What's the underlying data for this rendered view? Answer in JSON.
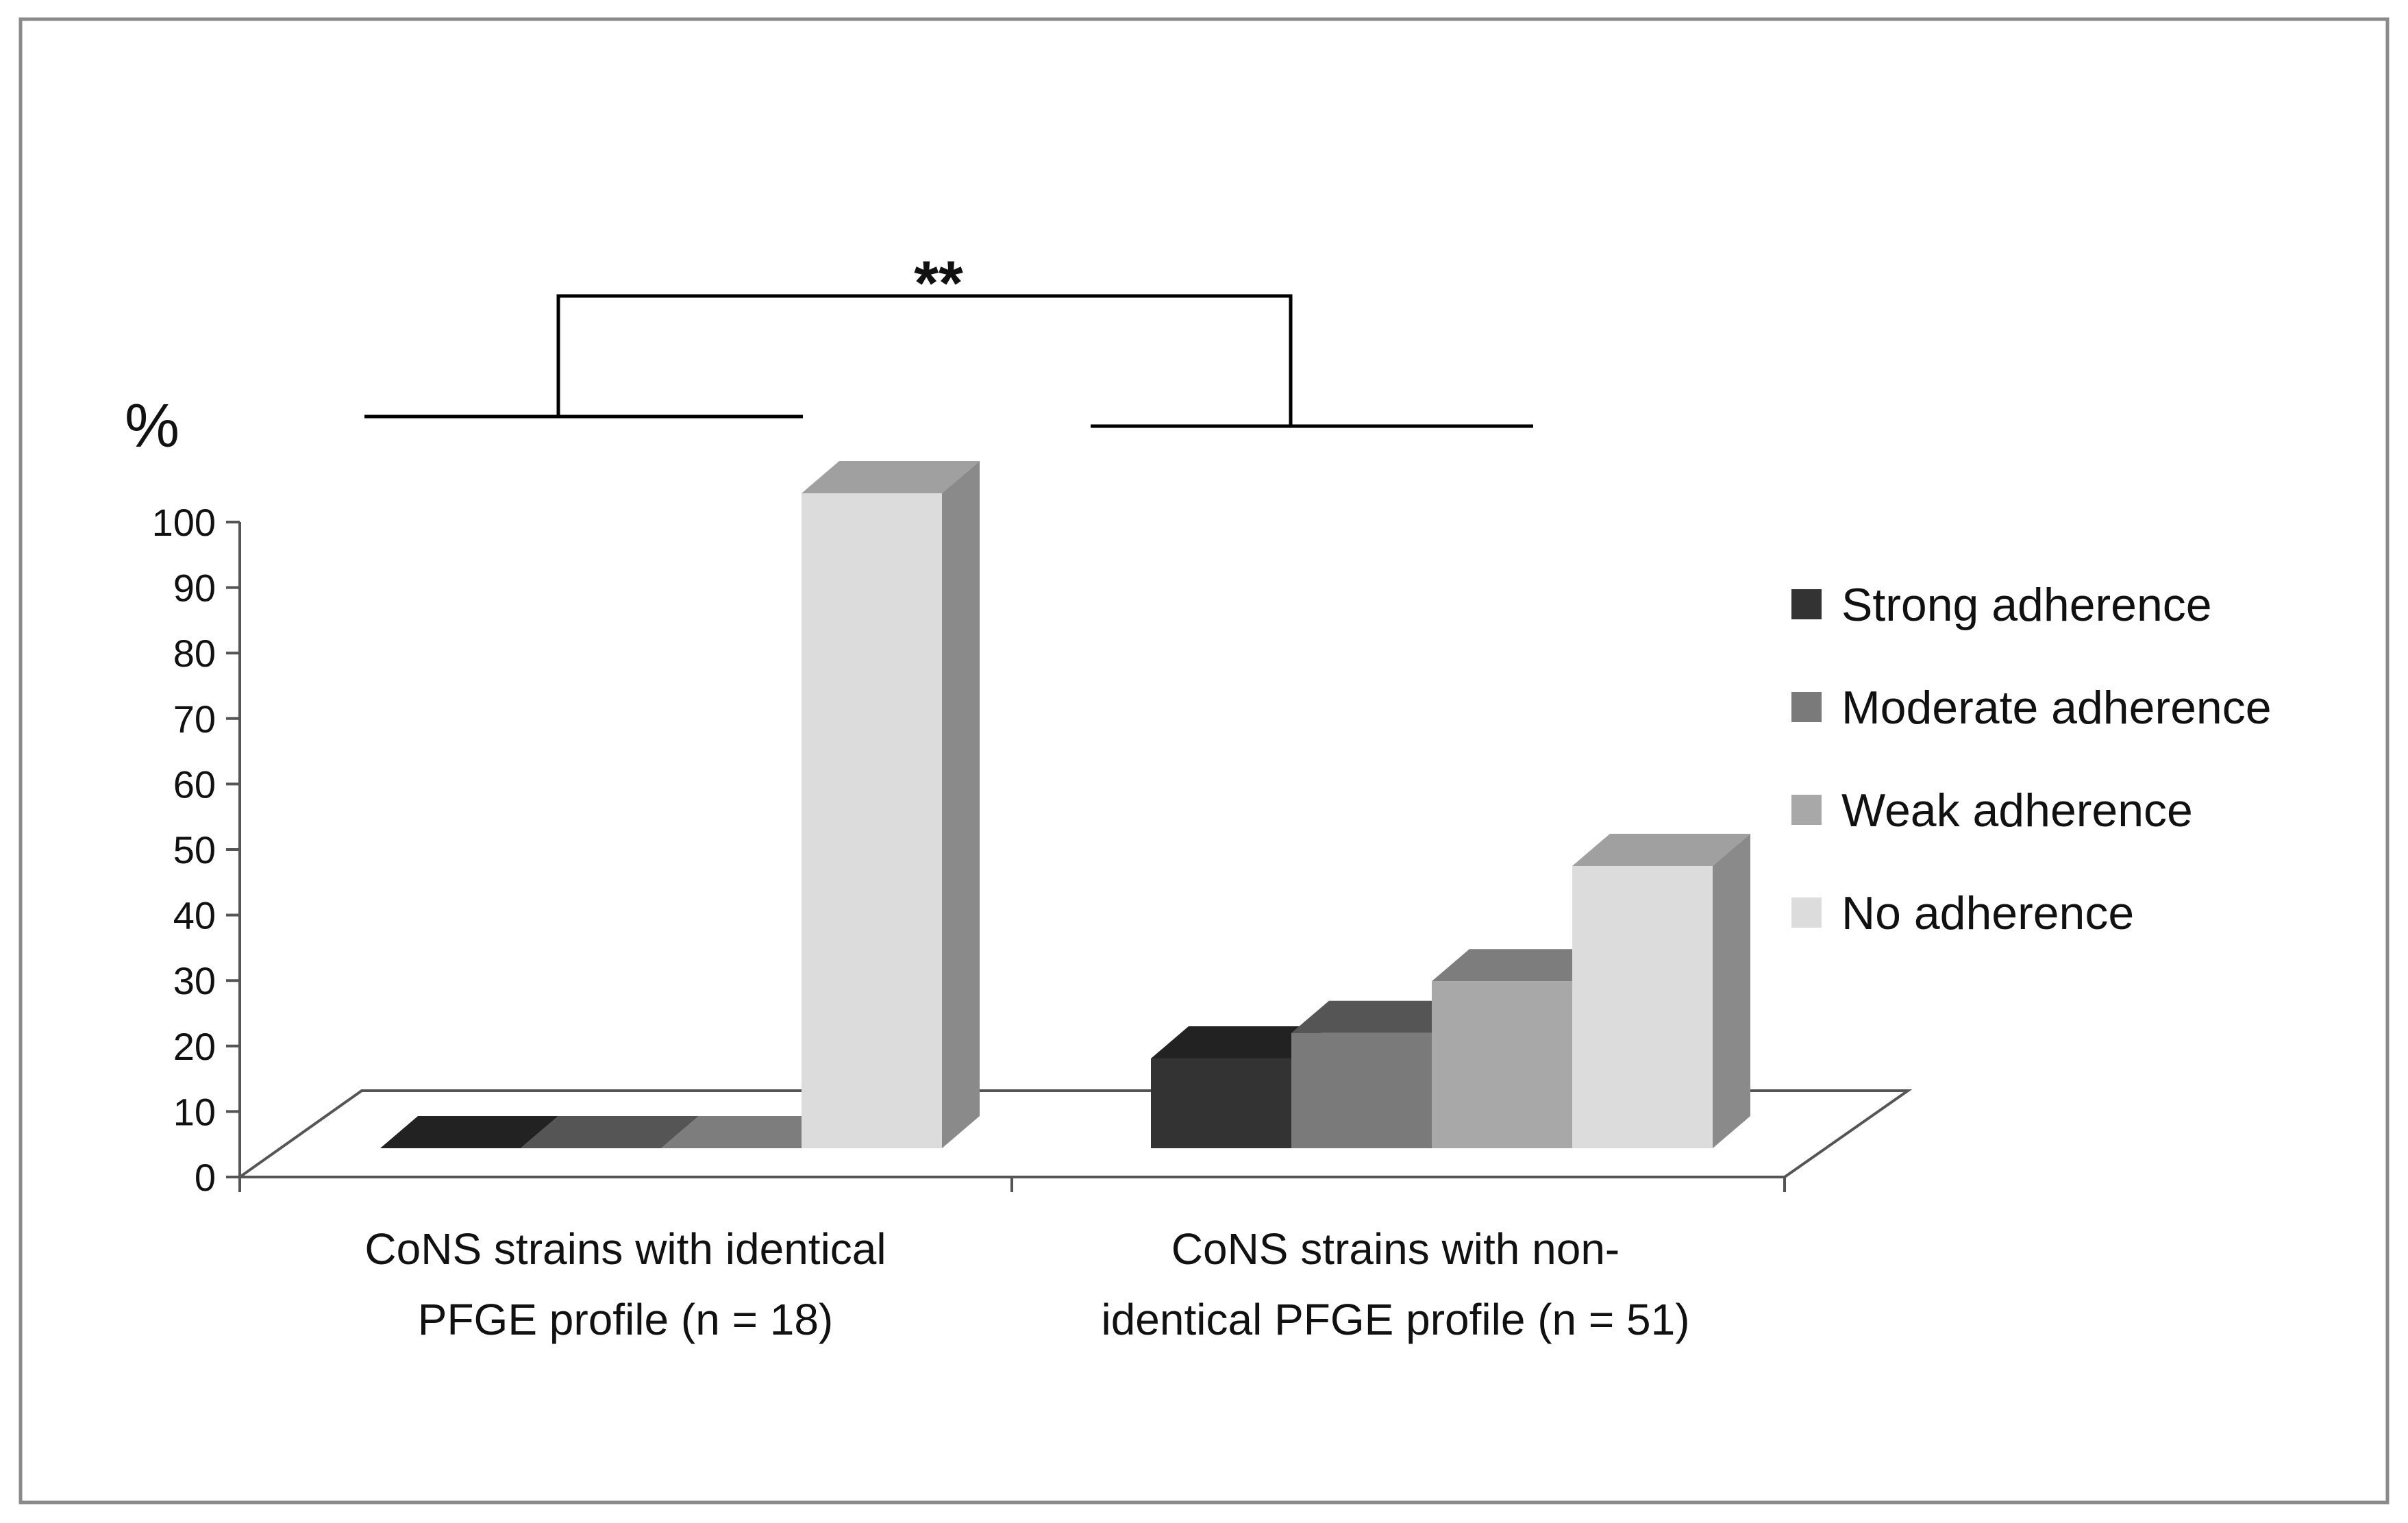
{
  "chart_data": {
    "type": "bar",
    "ylabel": "%",
    "ylim": [
      0,
      100
    ],
    "yticks": [
      0,
      10,
      20,
      30,
      40,
      50,
      60,
      70,
      80,
      90,
      100
    ],
    "categories": [
      {
        "line1": "CoNS strains with identical",
        "line2": "PFGE profile (n = 18)"
      },
      {
        "line1": "CoNS strains with non-",
        "line2": "identical PFGE profile (n = 51)"
      }
    ],
    "series": [
      {
        "name": "Strong adherence",
        "values": [
          0,
          13.7
        ],
        "front": "#333333",
        "top": "#222222",
        "side": "#2a2a2a"
      },
      {
        "name": "Moderate adherence",
        "values": [
          0,
          17.6
        ],
        "front": "#7a7a7a",
        "top": "#555555",
        "side": "#666666"
      },
      {
        "name": "Weak adherence",
        "values": [
          0,
          25.5
        ],
        "front": "#a8a8a8",
        "top": "#7d7d7d",
        "side": "#8c8c8c"
      },
      {
        "name": "No adherence",
        "values": [
          100,
          43.1
        ],
        "front": "#dcdcdc",
        "top": "#a0a0a0",
        "side": "#8a8a8a"
      }
    ],
    "legend_position": "right",
    "annotation": "**",
    "grid": false
  }
}
